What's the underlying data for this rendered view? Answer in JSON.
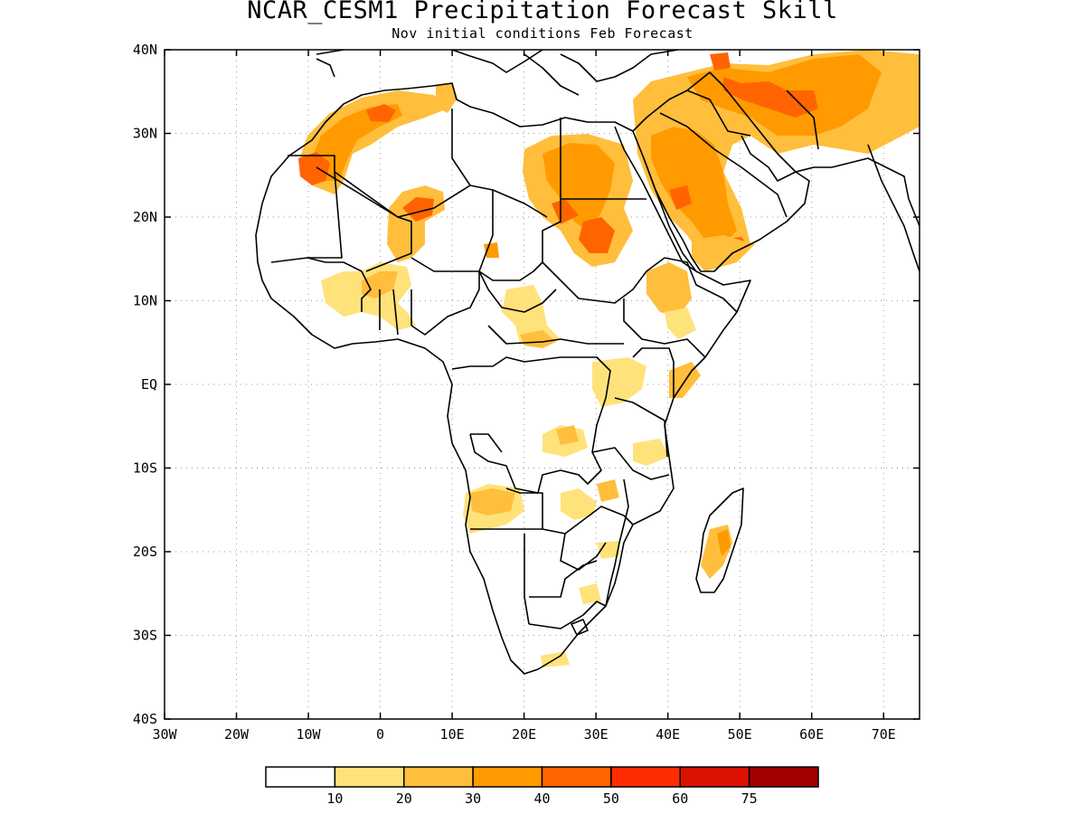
{
  "title": "NCAR_CESM1 Precipitation Forecast Skill",
  "subtitle": "Nov initial conditions  Feb Forecast",
  "lat_axis": {
    "labels": [
      "40N",
      "30N",
      "20N",
      "10N",
      "EQ",
      "10S",
      "20S",
      "30S",
      "40S"
    ],
    "values": [
      40,
      30,
      20,
      10,
      0,
      -10,
      -20,
      -30,
      -40
    ]
  },
  "lon_axis": {
    "labels": [
      "30W",
      "20W",
      "10W",
      "0",
      "10E",
      "20E",
      "30E",
      "40E",
      "50E",
      "60E",
      "70E"
    ],
    "values": [
      -30,
      -20,
      -10,
      0,
      10,
      20,
      30,
      40,
      50,
      60,
      70
    ]
  },
  "colorbar": {
    "colors": [
      "#ffffff",
      "#ffe27a",
      "#ffbe3c",
      "#ff9a00",
      "#ff6400",
      "#ff2d00",
      "#dc1200",
      "#a00000"
    ],
    "labels": [
      "10",
      "20",
      "30",
      "40",
      "50",
      "60",
      "75"
    ]
  },
  "grid": true
}
